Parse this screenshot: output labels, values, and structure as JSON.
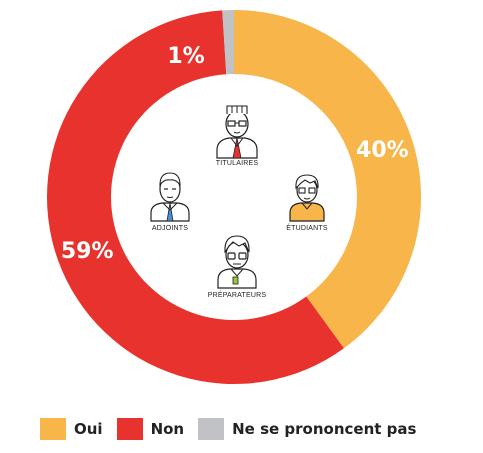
{
  "chart_data": {
    "type": "pie",
    "style": "donut",
    "categories": [
      "Oui",
      "Non",
      "Ne se prononcent pas"
    ],
    "values": [
      40,
      59,
      1
    ],
    "value_labels": [
      "40%",
      "59%",
      "1%"
    ],
    "colors": [
      "#f7b54a",
      "#e8322d",
      "#c0c2c6"
    ],
    "legend": {
      "position": "bottom-left",
      "entries": [
        "Oui",
        "Non",
        "Ne se prononcent pas"
      ]
    }
  },
  "people": [
    {
      "icon": "titulaire-person-icon",
      "label": "TITULAIRES",
      "accent": "#e8322d"
    },
    {
      "icon": "etudiant-person-icon",
      "label": "ÉTUDIANTS",
      "accent": "#f7b54a"
    },
    {
      "icon": "adjoint-person-icon",
      "label": "ADJOINTS",
      "accent": "#4a8fd6"
    },
    {
      "icon": "preparateur-person-icon",
      "label": "PRÉPARATEURS",
      "accent": "#9bc83c"
    }
  ]
}
